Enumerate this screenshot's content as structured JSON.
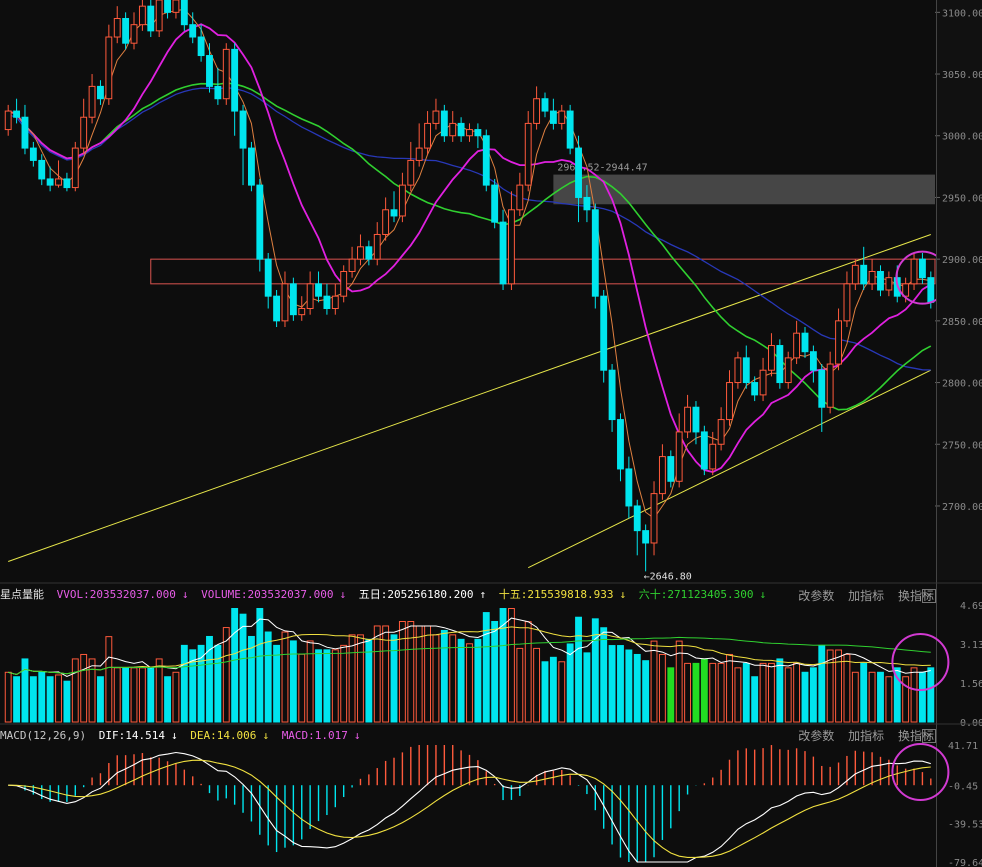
{
  "colors": {
    "background": "#0d0d0d",
    "up": "#ff5a3c",
    "down": "#00e5ee",
    "down_volume_alt": "#22dd22",
    "ma5": "#e08040",
    "ma20": "#e020e0",
    "ma60": "#30d030",
    "ma120": "#2838b8",
    "trendline": "#e6e64a",
    "resistance_box": "#d9534f",
    "highlight_circle": "#d23ad2"
  },
  "main_axis": {
    "ticks": [
      "3100.00",
      "3050.00",
      "3000.00",
      "2950.00",
      "2900.00",
      "2850.00",
      "2800.00",
      "2750.00",
      "2700.00"
    ]
  },
  "annotations": {
    "low_label": "←2646.80",
    "zone_label": "2968.52-2944.47"
  },
  "volume_panel": {
    "name": "星点量能",
    "vvol": "VVOL:203532037.000",
    "volume": "VOLUME:203532037.000",
    "ma5": "五日:205256180.200",
    "ma15": "十五:215539818.933",
    "ma60": "六十:271123405.300",
    "axis_ticks": [
      "4.69",
      "3.13",
      "1.56",
      "0.00"
    ]
  },
  "macd_panel": {
    "name": "MACD(12,26,9)",
    "dif": "DIF:14.514",
    "dea": "DEA:14.006",
    "macd": "MACD:1.017",
    "axis_ticks": [
      "41.71",
      "-0.45",
      "-39.53",
      "-79.64"
    ]
  },
  "toolbar": {
    "params": "改参数",
    "add_indicator": "加指标",
    "switch_indicator": "换指标",
    "close": "×"
  },
  "chart_data": {
    "type": "candlestick",
    "y_range": [
      2640,
      3110
    ],
    "candles": [
      [
        3005,
        3020,
        3000,
        3025
      ],
      [
        3020,
        3015,
        3010,
        3030
      ],
      [
        3015,
        2990,
        2985,
        3025
      ],
      [
        2990,
        2980,
        2975,
        2995
      ],
      [
        2980,
        2965,
        2960,
        2985
      ],
      [
        2965,
        2960,
        2955,
        2975
      ],
      [
        2960,
        2965,
        2958,
        2980
      ],
      [
        2965,
        2958,
        2955,
        2970
      ],
      [
        2958,
        2990,
        2955,
        2995
      ],
      [
        2990,
        3015,
        2985,
        3030
      ],
      [
        3015,
        3040,
        3010,
        3050
      ],
      [
        3040,
        3030,
        3025,
        3045
      ],
      [
        3030,
        3080,
        3025,
        3090
      ],
      [
        3080,
        3095,
        3075,
        3105
      ],
      [
        3095,
        3075,
        3070,
        3100
      ],
      [
        3075,
        3090,
        3070,
        3100
      ],
      [
        3090,
        3105,
        3085,
        3115
      ],
      [
        3105,
        3085,
        3080,
        3110
      ],
      [
        3085,
        3110,
        3080,
        3120
      ],
      [
        3110,
        3100,
        3095,
        3115
      ],
      [
        3100,
        3110,
        3095,
        3120
      ],
      [
        3110,
        3090,
        3085,
        3115
      ],
      [
        3090,
        3080,
        3075,
        3100
      ],
      [
        3080,
        3065,
        3060,
        3090
      ],
      [
        3065,
        3040,
        3035,
        3075
      ],
      [
        3040,
        3030,
        3025,
        3055
      ],
      [
        3030,
        3070,
        3025,
        3075
      ],
      [
        3070,
        3020,
        3000,
        3075
      ],
      [
        3020,
        2990,
        2960,
        3025
      ],
      [
        2990,
        2960,
        2955,
        2995
      ],
      [
        2960,
        2900,
        2890,
        2965
      ],
      [
        2900,
        2870,
        2860,
        2905
      ],
      [
        2870,
        2850,
        2845,
        2875
      ],
      [
        2850,
        2880,
        2845,
        2890
      ],
      [
        2880,
        2855,
        2850,
        2885
      ],
      [
        2855,
        2860,
        2850,
        2870
      ],
      [
        2860,
        2880,
        2855,
        2890
      ],
      [
        2880,
        2870,
        2865,
        2890
      ],
      [
        2870,
        2860,
        2855,
        2880
      ],
      [
        2860,
        2870,
        2855,
        2880
      ],
      [
        2870,
        2890,
        2865,
        2895
      ],
      [
        2890,
        2900,
        2885,
        2910
      ],
      [
        2900,
        2910,
        2895,
        2920
      ],
      [
        2910,
        2900,
        2895,
        2915
      ],
      [
        2900,
        2920,
        2895,
        2930
      ],
      [
        2920,
        2940,
        2915,
        2950
      ],
      [
        2940,
        2935,
        2930,
        2955
      ],
      [
        2935,
        2960,
        2930,
        2970
      ],
      [
        2960,
        2980,
        2955,
        2995
      ],
      [
        2980,
        2990,
        2975,
        3010
      ],
      [
        2990,
        3010,
        2985,
        3020
      ],
      [
        3010,
        3020,
        3005,
        3030
      ],
      [
        3020,
        3000,
        2995,
        3025
      ],
      [
        3000,
        3010,
        2995,
        3020
      ],
      [
        3010,
        3000,
        2995,
        3015
      ],
      [
        3000,
        3005,
        2995,
        3010
      ],
      [
        3005,
        3000,
        2990,
        3010
      ],
      [
        3000,
        2960,
        2955,
        3005
      ],
      [
        2960,
        2930,
        2925,
        2965
      ],
      [
        2930,
        2880,
        2875,
        2940
      ],
      [
        2880,
        2940,
        2875,
        2955
      ],
      [
        2940,
        2960,
        2935,
        2970
      ],
      [
        2960,
        3010,
        2955,
        3020
      ],
      [
        3010,
        3030,
        3005,
        3040
      ],
      [
        3030,
        3020,
        3015,
        3035
      ],
      [
        3020,
        3010,
        3005,
        3030
      ],
      [
        3010,
        3020,
        3005,
        3025
      ],
      [
        3020,
        2990,
        2985,
        3025
      ],
      [
        2990,
        2950,
        2930,
        3000
      ],
      [
        2950,
        2940,
        2930,
        2960
      ],
      [
        2940,
        2870,
        2860,
        2945
      ],
      [
        2870,
        2810,
        2800,
        2875
      ],
      [
        2810,
        2770,
        2760,
        2815
      ],
      [
        2770,
        2730,
        2720,
        2775
      ],
      [
        2730,
        2700,
        2690,
        2740
      ],
      [
        2700,
        2680,
        2660,
        2705
      ],
      [
        2680,
        2670,
        2647,
        2685
      ],
      [
        2670,
        2710,
        2660,
        2720
      ],
      [
        2710,
        2740,
        2705,
        2750
      ],
      [
        2740,
        2720,
        2715,
        2745
      ],
      [
        2720,
        2760,
        2715,
        2775
      ],
      [
        2760,
        2780,
        2755,
        2790
      ],
      [
        2780,
        2760,
        2750,
        2785
      ],
      [
        2760,
        2730,
        2725,
        2765
      ],
      [
        2730,
        2750,
        2725,
        2760
      ],
      [
        2750,
        2770,
        2745,
        2780
      ],
      [
        2770,
        2800,
        2765,
        2810
      ],
      [
        2800,
        2820,
        2795,
        2825
      ],
      [
        2820,
        2800,
        2795,
        2830
      ],
      [
        2800,
        2790,
        2785,
        2805
      ],
      [
        2790,
        2810,
        2785,
        2820
      ],
      [
        2810,
        2830,
        2805,
        2840
      ],
      [
        2830,
        2800,
        2795,
        2835
      ],
      [
        2800,
        2820,
        2795,
        2825
      ],
      [
        2820,
        2840,
        2815,
        2850
      ],
      [
        2840,
        2825,
        2820,
        2845
      ],
      [
        2825,
        2810,
        2800,
        2830
      ],
      [
        2810,
        2780,
        2760,
        2815
      ],
      [
        2780,
        2815,
        2775,
        2825
      ],
      [
        2815,
        2850,
        2810,
        2860
      ],
      [
        2850,
        2880,
        2845,
        2890
      ],
      [
        2880,
        2895,
        2875,
        2900
      ],
      [
        2895,
        2880,
        2875,
        2910
      ],
      [
        2880,
        2890,
        2875,
        2900
      ],
      [
        2890,
        2875,
        2870,
        2895
      ],
      [
        2875,
        2885,
        2870,
        2890
      ],
      [
        2885,
        2870,
        2865,
        2895
      ],
      [
        2870,
        2880,
        2865,
        2885
      ],
      [
        2880,
        2900,
        2875,
        2905
      ],
      [
        2900,
        2885,
        2880,
        2905
      ],
      [
        2885,
        2865,
        2860,
        2890
      ]
    ],
    "resistance_zone": [
      2944.47,
      2968.52
    ],
    "resistance_band": [
      2880,
      2900
    ],
    "trendline_upper": [
      [
        0,
        2655
      ],
      [
        110,
        2920
      ]
    ],
    "trendline_lower": [
      [
        62,
        2650
      ],
      [
        110,
        2810
      ]
    ],
    "volume_max": 4.69,
    "macd_range": [
      -79.64,
      41.71
    ]
  }
}
